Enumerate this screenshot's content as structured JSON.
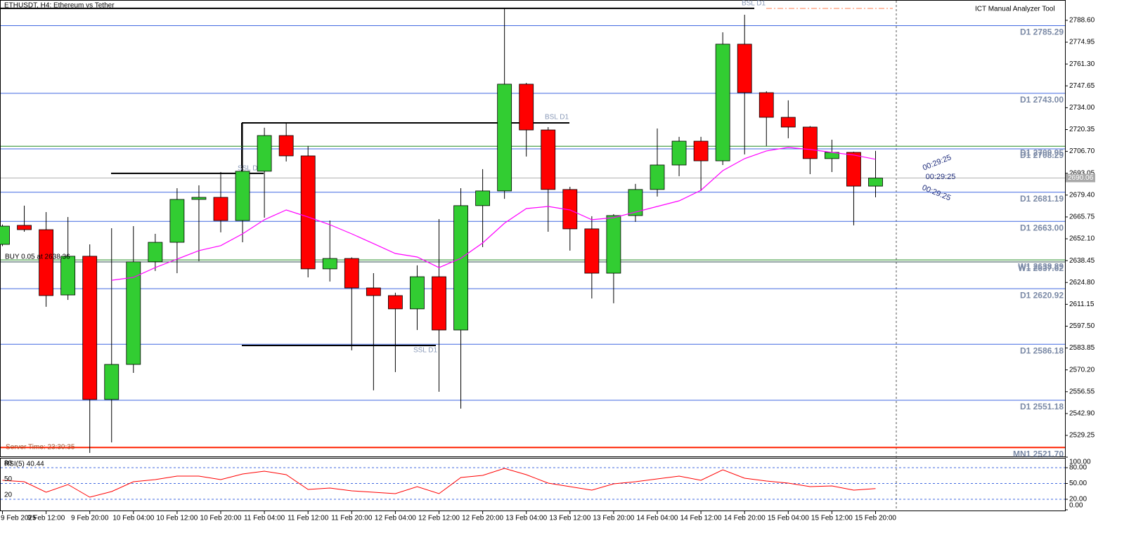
{
  "chart_data": [
    {
      "type": "candlestick",
      "title": "ETHUSDT, H4:  Ethereum vs Tether",
      "categories": [
        "9 Feb 2025",
        null,
        "9 Feb 12:00",
        null,
        "9 Feb 20:00",
        null,
        "10 Feb 04:00",
        null,
        "10 Feb 12:00",
        null,
        "10 Feb 20:00",
        null,
        "11 Feb 04:00",
        null,
        "11 Feb 12:00",
        null,
        "11 Feb 20:00",
        null,
        "12 Feb 04:00",
        null,
        "12 Feb 12:00",
        null,
        "12 Feb 20:00",
        null,
        "13 Feb 04:00",
        null,
        "13 Feb 12:00",
        null,
        "13 Feb 20:00",
        null,
        "14 Feb 04:00",
        null,
        "14 Feb 12:00",
        null,
        "14 Feb 20:00",
        null,
        "15 Feb 04:00",
        null,
        "15 Feb 12:00",
        null,
        "15 Feb 20:00"
      ],
      "open": [
        2648.6,
        2660.5,
        2657.8,
        2617.0,
        2641.2,
        2551.7,
        2573.6,
        2637.7,
        2649.9,
        2676.7,
        2678.0,
        2663.5,
        2694.3,
        2716.6,
        2703.9,
        2633.3,
        2639.8,
        2621.4,
        2616.6,
        2608.3,
        2628.4,
        2595.1,
        2672.8,
        2682.0,
        2748.7,
        2720.1,
        2682.9,
        2658.3,
        2630.6,
        2666.6,
        2682.9,
        2698.2,
        2713.1,
        2700.8,
        2773.7,
        2743.4,
        2728.0,
        2721.9,
        2702.2,
        2706.1,
        2685.0
      ],
      "high": [
        2661.0,
        2672.8,
        2668.8,
        2665.7,
        2648.6,
        2658.7,
        2660.0,
        2655.2,
        2683.7,
        2685.5,
        2693.8,
        2724.5,
        2721.5,
        2724.1,
        2710.1,
        2663.5,
        2640.5,
        2630.6,
        2618.4,
        2635.5,
        2664.4,
        2683.7,
        2695.6,
        2796.1,
        2749.5,
        2721.9,
        2684.6,
        2666.2,
        2667.5,
        2686.4,
        2721.0,
        2715.8,
        2715.8,
        2781.1,
        2792.1,
        2744.3,
        2738.6,
        2722.5,
        2714.0,
        2706.5,
        2707.0
      ],
      "low": [
        2647.5,
        2656.5,
        2609.6,
        2613.9,
        2518.3,
        2524.9,
        2568.3,
        2632.0,
        2630.6,
        2638.1,
        2656.1,
        2649.9,
        2665.3,
        2700.4,
        2628.0,
        2625.4,
        2582.4,
        2557.4,
        2568.8,
        2595.1,
        2556.5,
        2546.0,
        2646.9,
        2677.1,
        2703.5,
        2656.5,
        2644.7,
        2614.8,
        2611.8,
        2662.7,
        2678.5,
        2691.2,
        2682.0,
        2698.2,
        2704.8,
        2710.1,
        2714.9,
        2692.5,
        2693.8,
        2660.5,
        2678.0
      ],
      "close": [
        2660.0,
        2657.8,
        2616.6,
        2641.2,
        2551.7,
        2573.6,
        2637.7,
        2649.9,
        2676.7,
        2678.0,
        2663.5,
        2694.3,
        2716.6,
        2703.9,
        2633.3,
        2639.8,
        2621.4,
        2616.6,
        2608.3,
        2628.4,
        2595.1,
        2672.8,
        2682.0,
        2748.7,
        2720.1,
        2682.9,
        2658.3,
        2630.6,
        2666.6,
        2682.9,
        2698.2,
        2713.1,
        2700.8,
        2773.7,
        2743.4,
        2728.0,
        2721.9,
        2702.2,
        2706.1,
        2685.0,
        2690.06
      ],
      "up_color": "#32cd32",
      "down_color": "#ff0000",
      "ylim": [
        2516.1,
        2801.3
      ],
      "yticks": [
        {
          "value": 2788.6,
          "label": "2788.60"
        },
        {
          "value": 2774.95,
          "label": "2774.95"
        },
        {
          "value": 2761.3,
          "label": "2761.30"
        },
        {
          "value": 2747.65,
          "label": "2747.65"
        },
        {
          "value": 2734,
          "label": "2734.00"
        },
        {
          "value": 2720.35,
          "label": "2720.35"
        },
        {
          "value": 2706.7,
          "label": "2706.70"
        },
        {
          "value": 2693.05,
          "label": "2693.05"
        },
        {
          "value": 2679.4,
          "label": "2679.40"
        },
        {
          "value": 2665.75,
          "label": "2665.75"
        },
        {
          "value": 2652.1,
          "label": "2652.10"
        },
        {
          "value": 2638.45,
          "label": "2638.45"
        },
        {
          "value": 2624.8,
          "label": "2624.80"
        },
        {
          "value": 2611.15,
          "label": "2611.15"
        },
        {
          "value": 2597.5,
          "label": "2597.50"
        },
        {
          "value": 2583.85,
          "label": "2583.85"
        },
        {
          "value": 2570.2,
          "label": "2570.20"
        },
        {
          "value": 2556.55,
          "label": "2556.55"
        },
        {
          "value": 2542.9,
          "label": "2542.90"
        },
        {
          "value": 2529.25,
          "label": "2529.25"
        }
      ],
      "moving_average": {
        "color": "#ff00ff",
        "values": [
          null,
          null,
          null,
          null,
          null,
          2626.2,
          2628.0,
          2634.1,
          2639.4,
          2644.7,
          2647.8,
          2655.2,
          2664.0,
          2670.1,
          2665.7,
          2660.9,
          2655.2,
          2649.1,
          2642.9,
          2640.7,
          2634.1,
          2639.9,
          2649.5,
          2661.8,
          2671.0,
          2672.3,
          2670.1,
          2664.0,
          2665.3,
          2668.8,
          2672.3,
          2675.8,
          2682.4,
          2694.7,
          2702.2,
          2707.0,
          2709.2,
          2707.9,
          2706.1,
          2704.4,
          2701.8
        ]
      },
      "levels": [
        {
          "label": "D1 2785.29",
          "value": 2785.29,
          "color": "#4169e1"
        },
        {
          "label": "D1 2743.00",
          "value": 2743.0,
          "color": "#4169e1"
        },
        {
          "label": "D1 2709.95",
          "value": 2709.95,
          "color": "#228b22"
        },
        {
          "label": "D1 2708.29",
          "value": 2708.29,
          "color": "#4169e1"
        },
        {
          "label": "D1 2681.19",
          "value": 2681.19,
          "color": "#4169e1"
        },
        {
          "label": "D1 2663.00",
          "value": 2663.0,
          "color": "#4169e1"
        },
        {
          "label": "W1 2638.89",
          "value": 2638.89,
          "color": "#228b22"
        },
        {
          "label": "W1 2637.62",
          "value": 2637.62,
          "color": "#2f4f4f"
        },
        {
          "label": "D1 2620.92",
          "value": 2620.92,
          "color": "#4169e1"
        },
        {
          "label": "D1 2586.18",
          "value": 2586.18,
          "color": "#4169e1"
        },
        {
          "label": "D1 2551.18",
          "value": 2551.18,
          "color": "#4169e1"
        },
        {
          "label": "MN1 2521.70",
          "value": 2521.7,
          "color": "#ff2200"
        }
      ],
      "liquidity": [
        {
          "label": "BSL D1",
          "value": 2796.1
        },
        {
          "label": "BSL D1",
          "value": 2724.5
        },
        {
          "label": "SSL D1",
          "value": 2693.0
        },
        {
          "label": "SSL D1",
          "value": 2585.4
        }
      ],
      "current_price": 2690.06,
      "order_label": "BUY 0.05 at 2638.36",
      "server_time": "Server Time: 23:30:35",
      "tool_label": "ICT Manual Analyzer Tool",
      "countdown": "00:29:25"
    },
    {
      "type": "line",
      "title": "RSI(5) 40.44",
      "series": [
        {
          "name": "RSI(5)",
          "color": "#ff0000",
          "values": [
            56.0,
            53.3,
            33.3,
            48.0,
            24.0,
            34.7,
            53.3,
            57.3,
            64.0,
            64.0,
            57.3,
            68.0,
            73.3,
            66.7,
            38.7,
            41.3,
            36.0,
            33.3,
            30.7,
            44.0,
            30.7,
            61.3,
            65.3,
            78.7,
            66.7,
            50.7,
            44.0,
            37.3,
            49.3,
            53.3,
            58.7,
            64.0,
            56.0,
            76.0,
            60.0,
            54.7,
            50.7,
            44.0,
            45.3,
            37.3,
            40.44
          ]
        }
      ],
      "ylim": [
        0,
        100
      ],
      "yticks": [
        {
          "value": 100,
          "label": "100.00"
        },
        {
          "value": 80,
          "label": "80.00"
        },
        {
          "value": 50,
          "label": "50.00"
        },
        {
          "value": 20,
          "label": "20.00"
        },
        {
          "value": 0,
          "label": "0.00"
        }
      ],
      "levels": [
        80,
        50,
        20
      ]
    }
  ]
}
